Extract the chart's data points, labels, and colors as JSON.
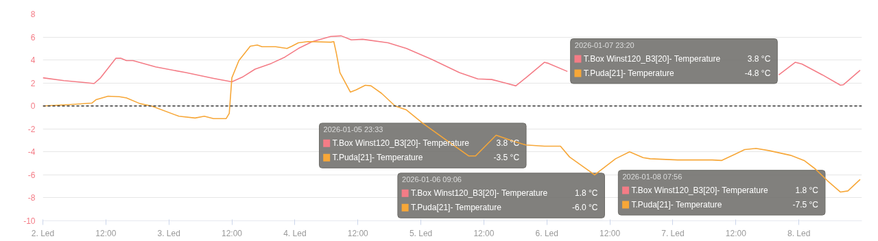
{
  "chart_data": {
    "type": "line",
    "xlim": [
      "2026-01-02T00:00",
      "2026-01-08T12:00"
    ],
    "xticks": [
      {
        "value": "2026-01-02",
        "label": "2. Led"
      },
      {
        "value": "2026-01-02T12:00",
        "label": "12:00"
      },
      {
        "value": "2026-01-03",
        "label": "3. Led"
      },
      {
        "value": "2026-01-03T12:00",
        "label": "12:00"
      },
      {
        "value": "2026-01-04",
        "label": "4. Led"
      },
      {
        "value": "2026-01-04T12:00",
        "label": "12:00"
      },
      {
        "value": "2026-01-05",
        "label": "5. Led"
      },
      {
        "value": "2026-01-05T12:00",
        "label": "12:00"
      },
      {
        "value": "2026-01-06",
        "label": "6. Led"
      },
      {
        "value": "2026-01-06T12:00",
        "label": "12:00"
      },
      {
        "value": "2026-01-07",
        "label": "7. Led"
      },
      {
        "value": "2026-01-07T12:00",
        "label": "12:00"
      },
      {
        "value": "2026-01-08",
        "label": "8. Led"
      }
    ],
    "ylim": [
      -10,
      8
    ],
    "yticks": [
      -10,
      -8,
      -6,
      -4,
      -2,
      0,
      2,
      4,
      6,
      8
    ],
    "grid": "y",
    "legend": "top right",
    "marker": "none",
    "line_style": "solid",
    "ref_lines": [
      {
        "axis": "y",
        "value": 0,
        "color": "#333333",
        "line_style": "dashed"
      }
    ],
    "series": [
      {
        "name": "T.Box Winst120_B3[20]- Temperature",
        "color": "#f47c86",
        "x": [
          "2026-01-02T00:00",
          "2026-01-02T04:00",
          "2026-01-02T07:35",
          "2026-01-02T09:45",
          "2026-01-02T11:00",
          "2026-01-02T13:55",
          "2026-01-02T14:50",
          "2026-01-02T15:55",
          "2026-01-02T17:10",
          "2026-01-02T21:30",
          "2026-01-03T03:15",
          "2026-01-03T08:30",
          "2026-01-03T12:00",
          "2026-01-03T14:10",
          "2026-01-03T16:25",
          "2026-01-03T19:30",
          "2026-01-03T22:05",
          "2026-01-04T00:40",
          "2026-01-04T03:20",
          "2026-01-04T06:50",
          "2026-01-04T08:50",
          "2026-01-04T10:45",
          "2026-01-04T12:55",
          "2026-01-04T17:45",
          "2026-01-04T21:15",
          "2026-01-05T02:05",
          "2026-01-05T07:20",
          "2026-01-05T10:50",
          "2026-01-05T13:30",
          "2026-01-05T16:05",
          "2026-01-05T18:05",
          "2026-01-05T20:00",
          "2026-01-05T23:33",
          "2026-01-06T00:20",
          "2026-01-06T03:55",
          "2026-01-06T12:00",
          "2026-01-07T20:10",
          "2026-01-07T23:20",
          "2026-01-08T00:35",
          "2026-01-08T04:30",
          "2026-01-08T07:56",
          "2026-01-08T08:30",
          "2026-01-08T11:40"
        ],
        "values": [
          2.45,
          2.2,
          2.05,
          1.95,
          2.45,
          4.15,
          4.15,
          3.95,
          3.95,
          3.4,
          2.9,
          2.4,
          2.1,
          2.55,
          3.2,
          3.7,
          4.25,
          5.0,
          5.6,
          6.05,
          6.1,
          5.75,
          5.8,
          5.5,
          5.0,
          4.05,
          2.9,
          2.35,
          2.3,
          2.0,
          1.75,
          2.45,
          3.8,
          3.7,
          3.0,
          null,
          2.7,
          3.8,
          3.65,
          2.7,
          1.8,
          1.85,
          3.1
        ]
      },
      {
        "name": "T.Puda[21]- Temperature",
        "color": "#f7a738",
        "x": [
          "2026-01-02T00:00",
          "2026-01-02T06:15",
          "2026-01-02T09:20",
          "2026-01-02T10:10",
          "2026-01-02T12:25",
          "2026-01-02T14:35",
          "2026-01-02T15:55",
          "2026-01-02T18:30",
          "2026-01-02T20:40",
          "2026-01-03T01:55",
          "2026-01-03T05:00",
          "2026-01-03T06:45",
          "2026-01-03T08:30",
          "2026-01-03T10:55",
          "2026-01-03T11:30",
          "2026-01-03T12:00",
          "2026-01-03T13:20",
          "2026-01-03T15:30",
          "2026-01-03T16:50",
          "2026-01-03T17:45",
          "2026-01-03T20:20",
          "2026-01-03T22:30",
          "2026-01-03T23:25",
          "2026-01-04T00:40",
          "2026-01-04T02:30",
          "2026-01-04T06:50",
          "2026-01-04T07:25",
          "2026-01-04T07:55",
          "2026-01-04T08:35",
          "2026-01-04T10:35",
          "2026-01-04T11:40",
          "2026-01-04T13:25",
          "2026-01-04T14:30",
          "2026-01-04T16:30",
          "2026-01-04T19:05",
          "2026-01-04T21:15",
          "2026-01-05T00:20",
          "2026-01-05T04:45",
          "2026-01-05T09:05",
          "2026-01-05T10:25",
          "2026-01-05T14:20",
          "2026-01-05T17:50",
          "2026-01-05T20:00",
          "2026-01-05T23:33",
          "2026-01-06T02:35",
          "2026-01-06T04:20",
          "2026-01-06T09:06",
          "2026-01-06T13:05",
          "2026-01-06T15:45",
          "2026-01-06T18:20",
          "2026-01-06T19:40",
          "2026-01-07T00:55",
          "2026-01-07T07:30",
          "2026-01-07T09:15",
          "2026-01-07T11:50",
          "2026-01-07T13:40",
          "2026-01-07T15:50",
          "2026-01-07T18:25",
          "2026-01-07T22:25",
          "2026-01-08T01:00",
          "2026-01-08T03:10",
          "2026-01-08T05:25",
          "2026-01-08T07:56",
          "2026-01-08T09:20",
          "2026-01-08T11:40"
        ],
        "values": [
          0,
          0.15,
          0.25,
          0.55,
          0.85,
          0.8,
          0.7,
          0.2,
          0,
          -0.9,
          -1.05,
          -0.9,
          -1.1,
          -1.1,
          -0.65,
          2.45,
          3.95,
          5.2,
          5.3,
          5.15,
          5.15,
          5.0,
          5.2,
          5.5,
          5.6,
          5.55,
          5.6,
          4.55,
          2.9,
          1.2,
          1.4,
          1.8,
          1.75,
          1.1,
          0,
          -0.35,
          -1.5,
          -2.95,
          -4.35,
          -4.35,
          -2.55,
          -3.1,
          -3.4,
          -3.5,
          -3.5,
          -4.45,
          -6.0,
          -4.6,
          -4.0,
          -4.5,
          -4.6,
          -4.7,
          -4.7,
          -4.75,
          -4.2,
          -3.8,
          -3.7,
          -3.9,
          -4.3,
          -4.75,
          -5.5,
          -6.5,
          -7.5,
          -7.4,
          -6.4
        ]
      }
    ],
    "annotations": [
      "2026-01-05 23:33",
      "3.8 °C",
      "-3.5 °C",
      "2026-01-06 09:06",
      "1.8 °C",
      "-6.0 °C",
      "2026-01-07 23:20",
      "3.8 °C",
      "-4.8 °C",
      "2026-01-08 07:56",
      "1.8 °C",
      "-7.5 °C"
    ]
  }
}
